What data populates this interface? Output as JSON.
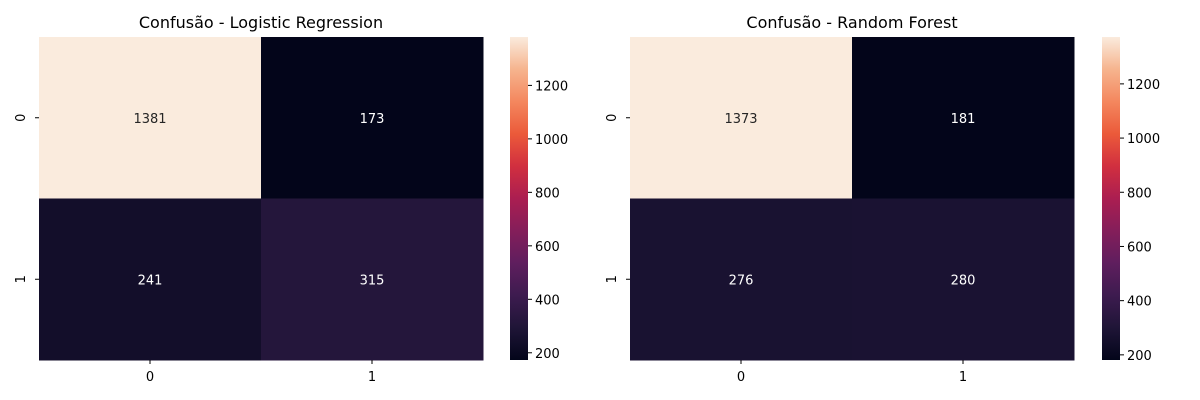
{
  "chart_data": [
    {
      "type": "heatmap",
      "title": "Confusão - Logistic Regression",
      "x_categories": [
        "0",
        "1"
      ],
      "y_categories": [
        "0",
        "1"
      ],
      "values": [
        [
          1381,
          173
        ],
        [
          241,
          315
        ]
      ],
      "colorbar": {
        "ticks": [
          200,
          400,
          600,
          800,
          1000,
          1200
        ],
        "range": [
          173,
          1381
        ]
      },
      "colormap": "rocket",
      "grid": false
    },
    {
      "type": "heatmap",
      "title": "Confusão - Random Forest",
      "x_categories": [
        "0",
        "1"
      ],
      "y_categories": [
        "0",
        "1"
      ],
      "values": [
        [
          1373,
          181
        ],
        [
          276,
          280
        ]
      ],
      "colorbar": {
        "ticks": [
          200,
          400,
          600,
          800,
          1000,
          1200
        ],
        "range": [
          181,
          1373
        ]
      },
      "colormap": "rocket",
      "grid": false
    }
  ]
}
